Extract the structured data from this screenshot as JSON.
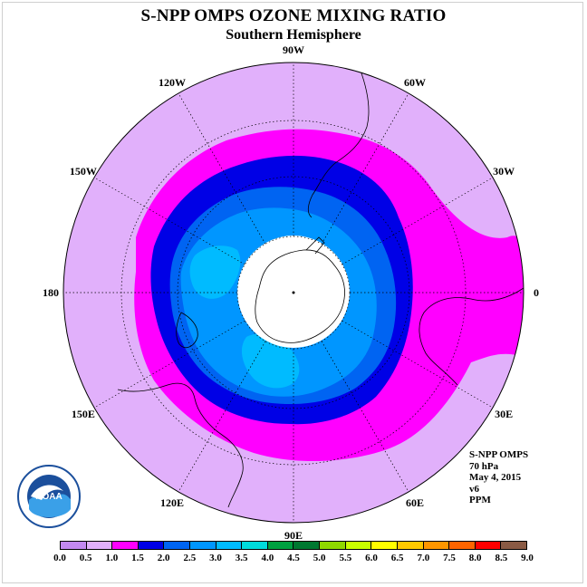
{
  "title": "S-NPP OMPS OZONE MIXING RATIO",
  "subtitle": "Southern Hemisphere",
  "longitude_labels": [
    {
      "text": "90W",
      "lon": -90
    },
    {
      "text": "60W",
      "lon": -60
    },
    {
      "text": "30W",
      "lon": -30
    },
    {
      "text": "0",
      "lon": 0
    },
    {
      "text": "30E",
      "lon": 30
    },
    {
      "text": "60E",
      "lon": 60
    },
    {
      "text": "90E",
      "lon": 90
    },
    {
      "text": "120E",
      "lon": 120
    },
    {
      "text": "150E",
      "lon": 150
    },
    {
      "text": "180",
      "lon": 180
    },
    {
      "text": "150W",
      "lon": -150
    },
    {
      "text": "120W",
      "lon": -120
    }
  ],
  "info": {
    "instrument": "S-NPP OMPS",
    "level": "70 hPa",
    "date": "May 4, 2015",
    "version": "v6",
    "units": "PPM"
  },
  "logo": {
    "text": "NOAA",
    "icon": "noaa-logo-icon"
  },
  "colorbar": {
    "ticks": [
      "0.0",
      "0.5",
      "1.0",
      "1.5",
      "2.0",
      "2.5",
      "3.0",
      "3.5",
      "4.0",
      "4.5",
      "5.0",
      "5.5",
      "6.0",
      "6.5",
      "7.0",
      "7.5",
      "8.0",
      "8.5",
      "9.0"
    ],
    "colors": [
      "#c389f0",
      "#e1b0fb",
      "#ff00ff",
      "#0000e6",
      "#0064f2",
      "#0096ff",
      "#00bbff",
      "#00dcdc",
      "#00a040",
      "#007830",
      "#8fd800",
      "#c8ff00",
      "#ffff00",
      "#ffc800",
      "#ff9600",
      "#ff6400",
      "#ff0000",
      "#8a5a44"
    ]
  },
  "map": {
    "projection": "south-polar-stereographic",
    "field_colors": {
      "background": "#e1b0fb",
      "band_1_0": "#ff00ff",
      "band_1_5": "#0000e6",
      "band_2_0": "#0064f2",
      "band_2_5": "#0096ff",
      "band_3_0": "#00bbff",
      "no_data": "#ffffff"
    }
  }
}
